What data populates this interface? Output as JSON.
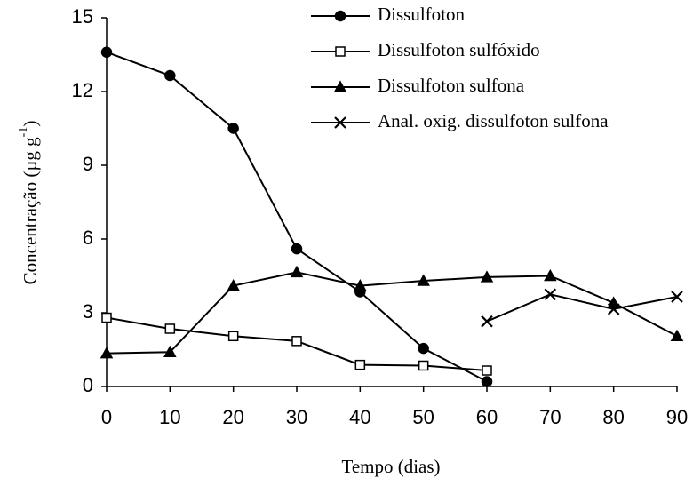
{
  "chart_data": {
    "type": "line",
    "x_label": "Tempo (dias)",
    "y_label": {
      "main": "Concentração (µg g",
      "sup": "-1",
      "end": ")"
    },
    "x": [
      0,
      10,
      20,
      30,
      40,
      50,
      60,
      70,
      80,
      90
    ],
    "series": [
      {
        "name": "Dissulfoton",
        "color": "#000000",
        "marker": "circle",
        "values": [
          13.6,
          12.65,
          10.5,
          5.6,
          3.85,
          1.55,
          0.2,
          null,
          null,
          null
        ]
      },
      {
        "name": "Dissulfoton sulfóxido",
        "color": "#000000",
        "marker": "square",
        "values": [
          2.8,
          2.35,
          2.05,
          1.85,
          0.88,
          0.85,
          0.65,
          null,
          null,
          null
        ]
      },
      {
        "name": "Dissulfoton sulfona",
        "color": "#000000",
        "marker": "triangle",
        "values": [
          1.35,
          1.4,
          4.1,
          4.65,
          4.1,
          4.3,
          4.45,
          4.5,
          3.4,
          2.05
        ]
      },
      {
        "name": "Anal. oxig. dissulfoton sulfona",
        "color": "#000000",
        "marker": "cross",
        "values": [
          null,
          null,
          null,
          null,
          null,
          null,
          2.65,
          3.75,
          3.15,
          3.65
        ]
      }
    ],
    "xlim": [
      0,
      90
    ],
    "xticks": [
      0,
      10,
      20,
      30,
      40,
      50,
      60,
      70,
      80,
      90
    ],
    "ylim": [
      0,
      15
    ],
    "yticks": [
      0,
      3,
      6,
      9,
      12,
      15
    ],
    "grid": false,
    "legend": "top-right"
  }
}
